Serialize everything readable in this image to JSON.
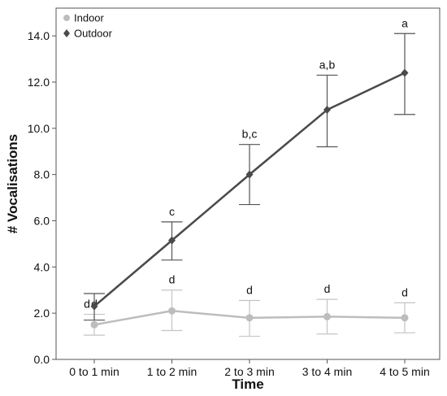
{
  "chart_data": {
    "type": "line",
    "title": "",
    "xlabel": "Time",
    "ylabel": "# Vocalisations",
    "categories": [
      "0 to 1 min",
      "1 to 2 min",
      "2 to 3 min",
      "3 to 4 min",
      "4 to 5 min"
    ],
    "ylim": [
      0,
      15.2
    ],
    "yticks": [
      "0.0",
      "2.0",
      "4.0",
      "6.0",
      "8.0",
      "10.0",
      "12.0",
      "14.0"
    ],
    "grid": false,
    "legend_position": "top-left",
    "series": [
      {
        "name": "Indoor",
        "marker": "circle",
        "color": "#bdbdbd",
        "values": [
          1.5,
          2.1,
          1.8,
          1.85,
          1.8
        ],
        "error_low": [
          1.05,
          1.25,
          1.0,
          1.1,
          1.15
        ],
        "error_high": [
          1.95,
          3.0,
          2.55,
          2.6,
          2.45
        ],
        "significance_labels": [
          "d",
          "d",
          "d",
          "d",
          "d"
        ]
      },
      {
        "name": "Outdoor",
        "marker": "diamond",
        "color": "#4a4a4a",
        "values": [
          2.3,
          5.15,
          8.0,
          10.8,
          12.4
        ],
        "error_low": [
          1.7,
          4.3,
          6.7,
          9.2,
          10.6
        ],
        "error_high": [
          2.85,
          5.95,
          9.3,
          12.3,
          14.1
        ],
        "significance_labels": [
          "d",
          "c",
          "b,c",
          "a,b",
          "a"
        ]
      }
    ]
  }
}
